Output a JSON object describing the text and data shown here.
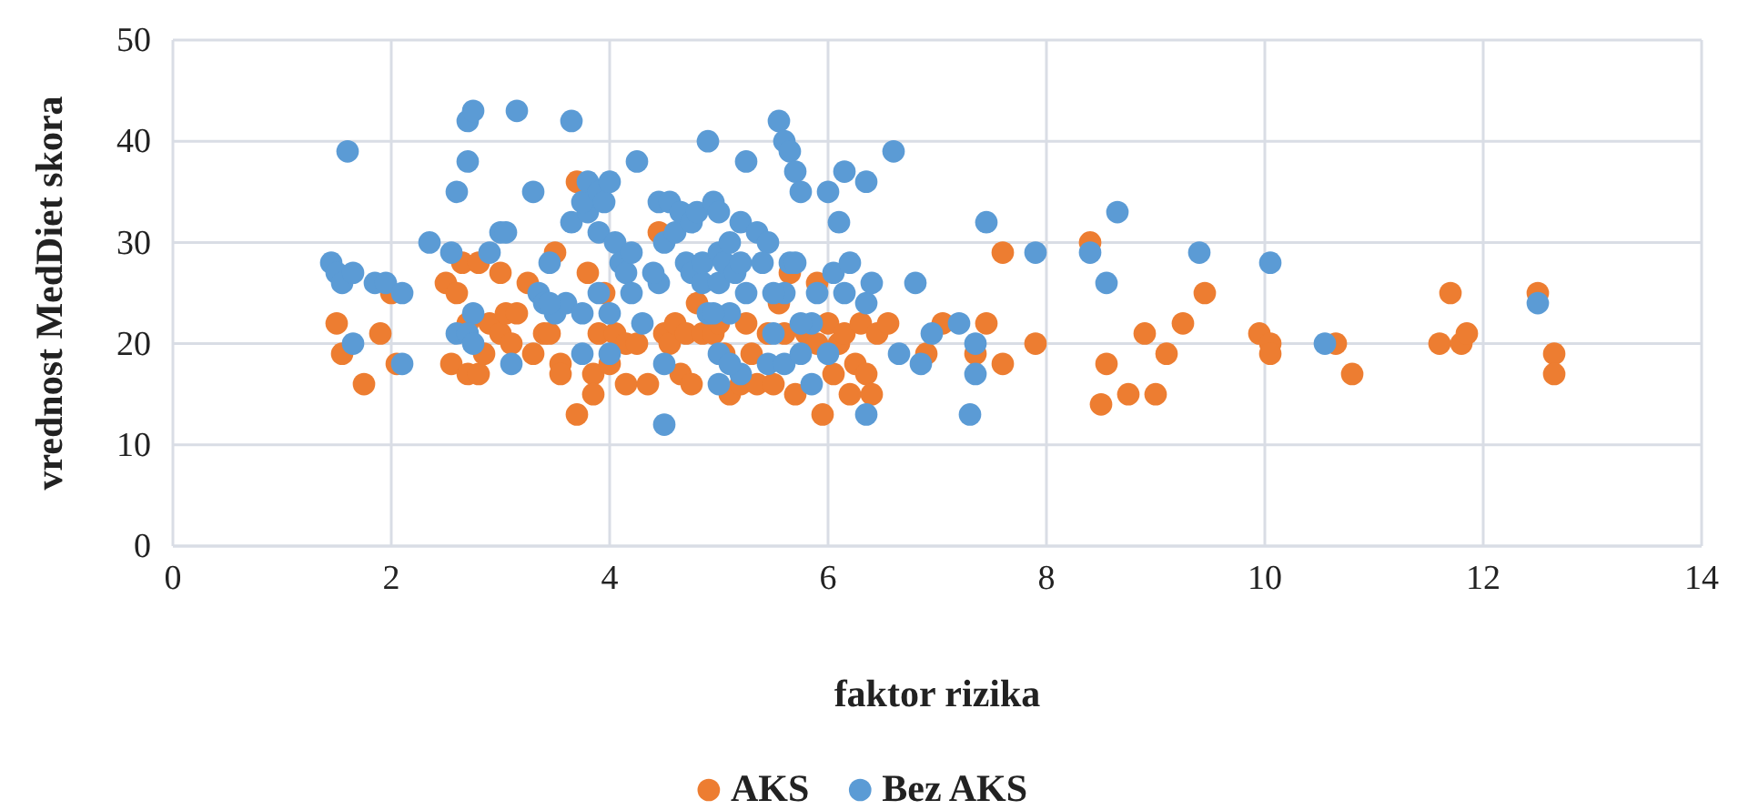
{
  "chart_data": {
    "type": "scatter",
    "xlabel": "faktor rizika",
    "ylabel": "vrednost MedDiet skora",
    "xlim": [
      0,
      14
    ],
    "xticks": [
      0,
      2,
      4,
      6,
      8,
      10,
      12,
      14
    ],
    "ylim": [
      0,
      50
    ],
    "yticks": [
      0,
      10,
      20,
      30,
      40,
      50
    ],
    "grid": true,
    "legend": "bottom",
    "marker": "circle",
    "series": [
      {
        "name": "AKS",
        "color": "#ed7d31",
        "x": [
          1.5,
          1.55,
          1.75,
          1.9,
          2.0,
          2.05,
          2.5,
          2.55,
          2.6,
          2.65,
          2.7,
          2.7,
          2.8,
          2.8,
          2.85,
          2.9,
          3.0,
          3.0,
          3.05,
          3.1,
          3.15,
          3.25,
          3.3,
          3.4,
          3.5,
          3.55,
          3.55,
          3.7,
          3.7,
          3.8,
          3.85,
          3.85,
          3.9,
          3.95,
          4.0,
          4.05,
          4.15,
          4.15,
          4.35,
          4.45,
          4.5,
          4.55,
          4.6,
          4.65,
          4.7,
          4.75,
          4.8,
          4.85,
          4.95,
          5.0,
          5.05,
          5.1,
          5.2,
          5.25,
          5.3,
          5.35,
          5.45,
          5.5,
          5.55,
          5.6,
          5.65,
          5.7,
          5.8,
          5.9,
          5.9,
          5.95,
          6.0,
          6.05,
          6.1,
          6.15,
          6.2,
          6.25,
          6.3,
          6.35,
          6.4,
          6.45,
          6.55,
          6.9,
          7.05,
          7.35,
          7.45,
          7.6,
          7.6,
          7.9,
          8.4,
          8.5,
          8.55,
          8.75,
          8.9,
          9.0,
          9.1,
          9.25,
          9.45,
          9.95,
          10.05,
          10.05,
          10.65,
          10.8,
          11.6,
          11.7,
          11.8,
          11.85,
          12.5,
          12.65,
          12.65,
          3.45,
          4.25
        ],
        "values": [
          22,
          19,
          16,
          21,
          25,
          18,
          26,
          18,
          25,
          28,
          22,
          17,
          28,
          17,
          19,
          22,
          21,
          27,
          23,
          20,
          23,
          26,
          19,
          21,
          29,
          18,
          17,
          36,
          13,
          27,
          17,
          15,
          21,
          25,
          18,
          21,
          20,
          16,
          16,
          31,
          21,
          20,
          22,
          17,
          21,
          16,
          24,
          21,
          21,
          22,
          19,
          15,
          16,
          22,
          19,
          16,
          21,
          16,
          24,
          21,
          27,
          15,
          21,
          26,
          20,
          13,
          22,
          17,
          20,
          21,
          15,
          18,
          22,
          17,
          15,
          21,
          22,
          19,
          22,
          19,
          22,
          29,
          18,
          20,
          30,
          14,
          18,
          15,
          21,
          15,
          19,
          22,
          25,
          21,
          20,
          19,
          20,
          17,
          20,
          25,
          20,
          21,
          25,
          19,
          17,
          21,
          20
        ]
      },
      {
        "name": "Bez AKS",
        "color": "#5b9bd5",
        "x": [
          1.6,
          1.45,
          1.5,
          1.55,
          1.65,
          1.85,
          1.95,
          1.65,
          2.1,
          2.1,
          2.35,
          2.55,
          2.6,
          2.6,
          2.7,
          2.75,
          2.7,
          2.75,
          2.7,
          2.75,
          2.9,
          3.0,
          3.05,
          3.15,
          3.1,
          3.3,
          3.35,
          3.4,
          3.45,
          3.5,
          3.6,
          3.65,
          3.65,
          3.8,
          3.75,
          3.8,
          3.9,
          3.95,
          4.0,
          3.9,
          3.75,
          3.75,
          3.9,
          4.0,
          4.05,
          4.1,
          4.15,
          4.2,
          4.2,
          4.25,
          4.3,
          4.45,
          4.45,
          4.5,
          4.55,
          4.6,
          4.65,
          4.7,
          4.75,
          4.8,
          4.75,
          4.85,
          4.9,
          4.95,
          4.85,
          4.9,
          5.0,
          5.0,
          5.0,
          5.05,
          5.1,
          5.15,
          5.2,
          5.2,
          5.25,
          5.25,
          5.1,
          5.0,
          5.0,
          5.2,
          5.1,
          5.35,
          5.45,
          5.4,
          5.5,
          5.45,
          5.55,
          5.6,
          5.65,
          5.7,
          5.6,
          5.65,
          5.7,
          5.6,
          5.75,
          5.75,
          5.85,
          5.85,
          5.9,
          6.0,
          6.0,
          6.05,
          6.15,
          6.1,
          6.2,
          6.15,
          6.35,
          6.35,
          6.4,
          6.35,
          6.6,
          6.65,
          6.8,
          6.85,
          6.95,
          7.2,
          7.35,
          7.35,
          7.3,
          7.45,
          7.9,
          8.4,
          8.55,
          8.65,
          9.4,
          10.05,
          10.55,
          12.5,
          4.5,
          4.5,
          3.45,
          4.4,
          4.95,
          5.5,
          5.75,
          4.0
        ],
        "values": [
          39,
          28,
          27,
          26,
          27,
          26,
          26,
          20,
          25,
          18,
          30,
          29,
          35,
          21,
          42,
          43,
          38,
          23,
          21,
          20,
          29,
          31,
          31,
          43,
          18,
          35,
          25,
          24,
          28,
          23,
          24,
          32,
          42,
          33,
          34,
          36,
          35,
          34,
          36,
          31,
          23,
          19,
          25,
          23,
          30,
          28,
          27,
          29,
          25,
          38,
          22,
          26,
          34,
          30,
          34,
          31,
          33,
          28,
          32,
          33,
          27,
          26,
          40,
          34,
          28,
          23,
          33,
          29,
          26,
          28,
          30,
          27,
          32,
          28,
          25,
          38,
          23,
          19,
          16,
          17,
          18,
          31,
          30,
          28,
          21,
          18,
          42,
          40,
          39,
          37,
          25,
          28,
          28,
          18,
          19,
          35,
          22,
          16,
          25,
          35,
          19,
          27,
          37,
          32,
          28,
          25,
          36,
          24,
          26,
          13,
          39,
          19,
          26,
          18,
          21,
          22,
          20,
          17,
          13,
          32,
          29,
          29,
          26,
          33,
          29,
          28,
          20,
          24,
          12,
          18,
          24,
          27,
          23,
          25,
          22,
          19
        ]
      }
    ]
  }
}
